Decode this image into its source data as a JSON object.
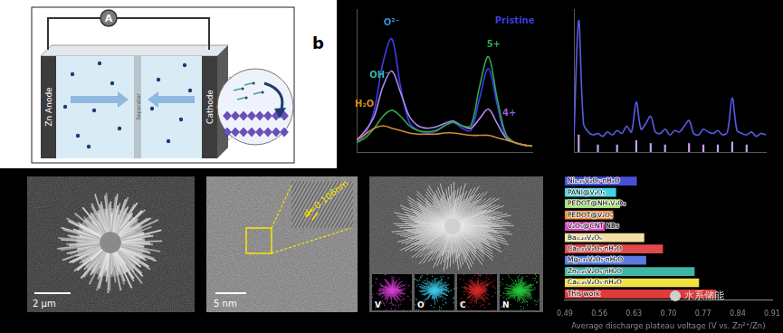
{
  "panel_labels": [
    "b"
  ],
  "schematic": {
    "ammeter": "A",
    "anode": "Zn Anode",
    "separator": "Separator",
    "cathode": "Cathode"
  },
  "images": [
    {
      "scale_bar": "2 μm"
    },
    {
      "scale_bar": "5 nm",
      "annotation": "d=0.106nm"
    },
    {
      "eds_maps": [
        {
          "label": "V",
          "color": "#d23cd2"
        },
        {
          "label": "O",
          "color": "#3cc8e6"
        },
        {
          "label": "C",
          "color": "#d22828"
        },
        {
          "label": "N",
          "color": "#28c83c"
        }
      ]
    }
  ],
  "watermark": "水系储能",
  "chart_data": [
    {
      "type": "line",
      "tick_labels": false,
      "xlim": [
        0,
        20
      ],
      "ylim": [
        0,
        120
      ],
      "x": [
        0,
        1,
        2,
        3,
        4,
        5,
        6,
        7,
        8,
        9,
        10,
        11,
        12,
        13,
        14,
        15,
        16,
        17,
        18,
        19,
        20
      ],
      "series": [
        {
          "color": "#d08a30",
          "values": [
            10,
            15,
            20,
            22,
            20,
            18,
            16,
            15,
            15,
            15,
            16,
            16,
            15,
            14,
            14,
            14,
            12,
            10,
            8,
            6,
            5
          ]
        },
        {
          "color": "#2fa84f",
          "values": [
            8,
            12,
            20,
            30,
            35,
            30,
            22,
            18,
            17,
            18,
            22,
            25,
            22,
            22,
            55,
            80,
            45,
            15,
            8,
            6,
            5
          ]
        },
        {
          "color": "#b48ae8",
          "values": [
            10,
            18,
            30,
            55,
            68,
            50,
            30,
            22,
            20,
            21,
            24,
            26,
            22,
            20,
            28,
            36,
            24,
            12,
            8,
            6,
            5
          ]
        },
        {
          "color": "#3b3bf0",
          "values": [
            8,
            15,
            35,
            75,
            95,
            55,
            25,
            18,
            16,
            17,
            22,
            25,
            20,
            18,
            45,
            70,
            40,
            12,
            8,
            6,
            5
          ]
        }
      ],
      "annotations": [
        {
          "text": "O²⁻",
          "x": 4,
          "y": 108,
          "color": "#3b8fd0"
        },
        {
          "text": "OH⁻",
          "x": 2.6,
          "y": 64,
          "color": "#2fb8a8"
        },
        {
          "text": "H₂O",
          "x": 0.9,
          "y": 40,
          "color": "#e08a20"
        },
        {
          "text": "Pristine",
          "x": 18,
          "y": 110,
          "color": "#3b3bf0"
        },
        {
          "text": "5+",
          "x": 15.6,
          "y": 90,
          "color": "#2fa84f"
        },
        {
          "text": "4+",
          "x": 17.4,
          "y": 32,
          "color": "#9a5ae0"
        }
      ]
    },
    {
      "type": "line",
      "tick_labels": false,
      "xlim": [
        0,
        40
      ],
      "ylim": [
        0,
        100
      ],
      "x": [
        0,
        1,
        2,
        3,
        4,
        5,
        6,
        7,
        8,
        9,
        10,
        11,
        12,
        13,
        14,
        15,
        16,
        17,
        18,
        19,
        20,
        21,
        22,
        23,
        24,
        25,
        26,
        27,
        28,
        29,
        30,
        31,
        32,
        33,
        34,
        35,
        36,
        37,
        38,
        39,
        40
      ],
      "series": [
        {
          "color": "#5a5ae8",
          "values": [
            10,
            92,
            20,
            14,
            12,
            13,
            11,
            14,
            12,
            15,
            13,
            18,
            14,
            35,
            16,
            20,
            25,
            14,
            13,
            16,
            12,
            15,
            14,
            18,
            22,
            13,
            12,
            16,
            14,
            13,
            15,
            12,
            14,
            38,
            15,
            13,
            12,
            14,
            11,
            13,
            12
          ]
        },
        {
          "color": "#c9a0f0",
          "type": "bar",
          "x": [
            1,
            5,
            9,
            13,
            16,
            19,
            24,
            27,
            30,
            33,
            36
          ],
          "values": [
            12,
            5,
            5,
            8,
            6,
            5,
            6,
            5,
            5,
            7,
            5
          ]
        }
      ]
    },
    {
      "type": "bar",
      "orientation": "horizontal",
      "categories": [
        "Ni₀.₂₅V₂O₅·nH₂O",
        "PANI@V₂O₅",
        "PEDOT@NH₄V₃O₈",
        "PEDOT@V₂O₅",
        "V₂O₅@CNT NBs",
        "Ba₀.₂₃V₂O₅",
        "Ca₀.₂₄V₂O₅·nH₂O",
        "Mg₀.₃₄V₂O₅·nH₂O",
        "Zn₀.₂₅V₂O₅·nH₂O",
        "Ca₀.₂₅V₂O₅·nH₂O",
        "This work"
      ],
      "values": [
        0.636,
        0.594,
        0.602,
        0.588,
        0.571,
        0.651,
        0.689,
        0.655,
        0.753,
        0.762,
        0.796
      ],
      "colors": [
        "#4b4fd8",
        "#3fd5e0",
        "#9be06a",
        "#f0883a",
        "#e040c0",
        "#f4e0a0",
        "#e04a4a",
        "#5a7ae0",
        "#3fb5a5",
        "#f0e040",
        "#e03a3a"
      ],
      "x_label": "Average discharge plateau voltage (V vs. Zn²⁺/Zn)",
      "xlim": [
        0.49,
        0.91
      ],
      "xticks": [
        0.49,
        0.56,
        0.63,
        {
          "value": 0.7,
          "label": "0.70"
        },
        0.77,
        0.84,
        0.91
      ]
    }
  ]
}
